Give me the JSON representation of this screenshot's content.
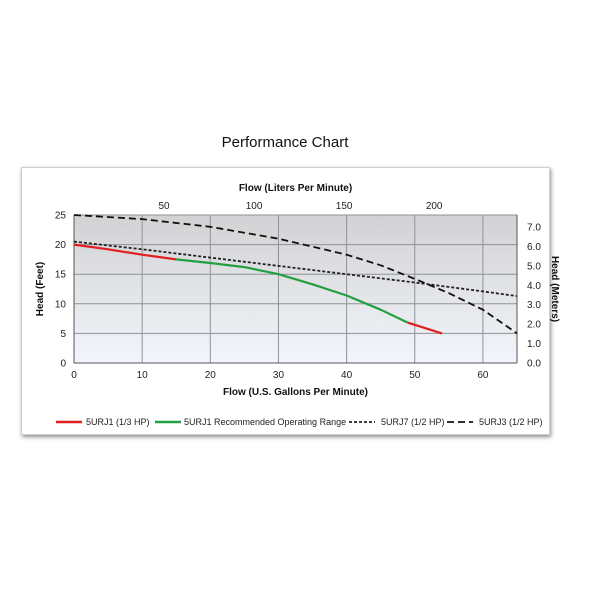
{
  "title": "Performance Chart",
  "chart_data": {
    "type": "line",
    "title": "Performance Chart",
    "xlabel": "Flow (U.S. Gallons Per Minute)",
    "x2label": "Flow (Liters Per Minute)",
    "ylabel": "Head (Feet)",
    "y2label": "Head (Meters)",
    "xlim": [
      0,
      65
    ],
    "ylim": [
      0,
      25
    ],
    "x2lim": [
      0,
      246
    ],
    "y2lim": [
      0,
      7.62
    ],
    "xticks": [
      0,
      10,
      20,
      30,
      40,
      50,
      60
    ],
    "yticks": [
      0,
      5,
      10,
      15,
      20,
      25
    ],
    "x2ticks": [
      50,
      100,
      150,
      200
    ],
    "y2ticks": [
      "0.0",
      "1.0",
      "2.0",
      "3.0",
      "4.0",
      "5.0",
      "6.0",
      "7.0"
    ],
    "grid": true,
    "legend_position": "bottom",
    "series": [
      {
        "name": "5URJ1 (1/3 HP)",
        "color": "#e02020",
        "style": "solid",
        "x": [
          0,
          5,
          10,
          15
        ],
        "y": [
          20,
          19.2,
          18.3,
          17.5
        ]
      },
      {
        "name": "5URJ1 Recommended Operating Range",
        "color": "#22a040",
        "style": "solid",
        "x": [
          15,
          20,
          25,
          30,
          35,
          40,
          45,
          49
        ],
        "y": [
          17.5,
          16.9,
          16.2,
          15.0,
          13.3,
          11.4,
          9.0,
          6.8
        ]
      },
      {
        "name": "5URJ1 (1/3 HP)",
        "color": "#e02020",
        "style": "solid",
        "legend": false,
        "x": [
          49,
          54
        ],
        "y": [
          6.8,
          5.0
        ]
      },
      {
        "name": "5URJ7 (1/2 HP)",
        "color": "#222222",
        "style": "dotted",
        "x": [
          0,
          10,
          20,
          30,
          40,
          50,
          60,
          65
        ],
        "y": [
          20.5,
          19.2,
          17.8,
          16.4,
          15.0,
          13.6,
          12.1,
          11.3
        ]
      },
      {
        "name": "5URJ3 (1/2 HP)",
        "color": "#111111",
        "style": "dashed",
        "x": [
          0,
          10,
          20,
          30,
          40,
          45,
          50,
          55,
          60,
          65
        ],
        "y": [
          25,
          24.3,
          23.0,
          21.0,
          18.3,
          16.5,
          14.2,
          11.8,
          9.0,
          5.0
        ]
      }
    ]
  }
}
